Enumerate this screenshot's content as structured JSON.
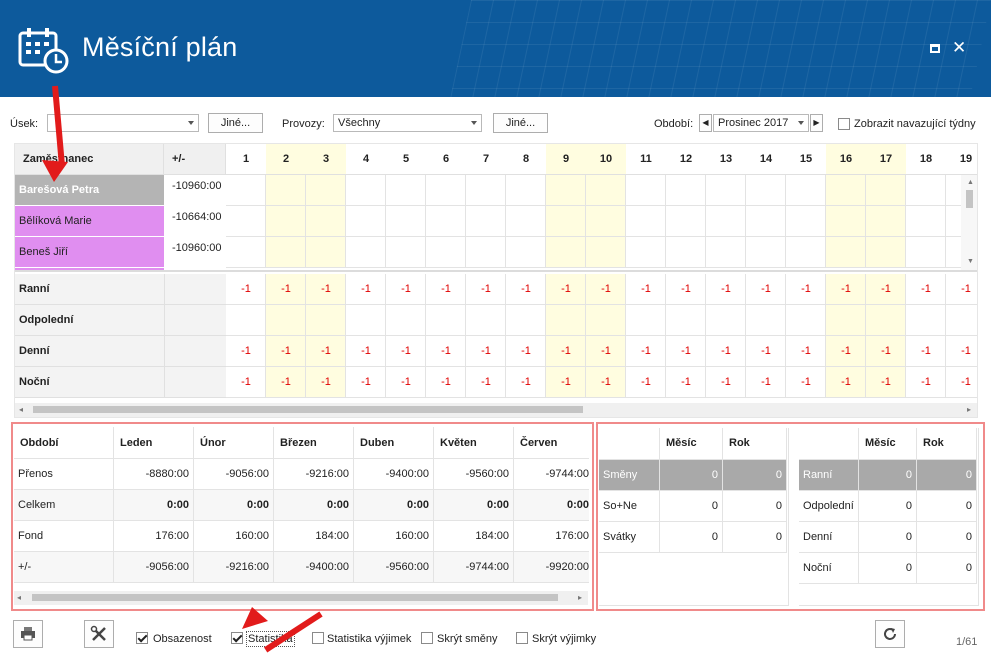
{
  "window": {
    "title": "Měsíční plán"
  },
  "toolbar": {
    "usek_label": "Úsek:",
    "usek_value": "",
    "jine1_label": "Jiné...",
    "provozy_label": "Provozy:",
    "provozy_value": "Všechny",
    "jine2_label": "Jiné...",
    "obdobi_label": "Období:",
    "obdobi_value": "Prosinec 2017",
    "navazujici_label": "Zobrazit navazující týdny"
  },
  "plan": {
    "col_employee": "Zaměstnanec",
    "col_diff": "+/-",
    "days": [
      "1",
      "2",
      "3",
      "4",
      "5",
      "6",
      "7",
      "8",
      "9",
      "10",
      "11",
      "12",
      "13",
      "14",
      "15",
      "16",
      "17",
      "18",
      "19"
    ],
    "weekend_days": [
      "2",
      "3",
      "9",
      "10",
      "16",
      "17"
    ],
    "employees": [
      {
        "name": "Barešová Petra",
        "diff": "-10960:00",
        "selected": true
      },
      {
        "name": "Bělíková Marie",
        "diff": "-10664:00"
      },
      {
        "name": "Beneš Jiří",
        "diff": "-10960:00"
      }
    ],
    "shift_rows": [
      {
        "label": "Ranní",
        "value": "-1"
      },
      {
        "label": "Odpolední",
        "value": ""
      },
      {
        "label": "Denní",
        "value": "-1"
      },
      {
        "label": "Noční",
        "value": "-1"
      }
    ]
  },
  "period_table": {
    "headers": [
      "Období",
      "Leden",
      "Únor",
      "Březen",
      "Duben",
      "Květen",
      "Červen"
    ],
    "rows": [
      {
        "label": "Přenos",
        "values": [
          "-8880:00",
          "-9056:00",
          "-9216:00",
          "-9400:00",
          "-9560:00",
          "-9744:00"
        ]
      },
      {
        "label": "Celkem",
        "values": [
          "0:00",
          "0:00",
          "0:00",
          "0:00",
          "0:00",
          "0:00"
        ],
        "bold": true
      },
      {
        "label": "Fond",
        "values": [
          "176:00",
          "160:00",
          "184:00",
          "160:00",
          "184:00",
          "176:00"
        ]
      },
      {
        "label": "+/-",
        "values": [
          "-9056:00",
          "-9216:00",
          "-9400:00",
          "-9560:00",
          "-9744:00",
          "-9920:00"
        ]
      }
    ]
  },
  "stats1": {
    "headers": [
      "",
      "Měsíc",
      "Rok"
    ],
    "rows": [
      {
        "label": "Směny",
        "m": "0",
        "r": "0"
      },
      {
        "label": "So+Ne",
        "m": "0",
        "r": "0"
      },
      {
        "label": "Svátky",
        "m": "0",
        "r": "0"
      }
    ]
  },
  "stats2": {
    "headers": [
      "",
      "Měsíc",
      "Rok"
    ],
    "rows": [
      {
        "label": "Ranní",
        "m": "0",
        "r": "0"
      },
      {
        "label": "Odpolední",
        "m": "0",
        "r": "0"
      },
      {
        "label": "Denní",
        "m": "0",
        "r": "0"
      },
      {
        "label": "Noční",
        "m": "0",
        "r": "0"
      }
    ]
  },
  "footer": {
    "obsazenost": "Obsazenost",
    "statistika": "Statistika",
    "statistika_vyjimek": "Statistika výjimek",
    "skryt_smeny": "Skrýt směny",
    "skryt_vyjimky": "Skrýt výjimky",
    "page": "1/61"
  },
  "colors": {
    "header": "#0d5a9c",
    "employee_pink": "#e08ef0",
    "weekend": "#fffde0",
    "negative": "#e00000",
    "highlight_box": "#f08a8a"
  }
}
